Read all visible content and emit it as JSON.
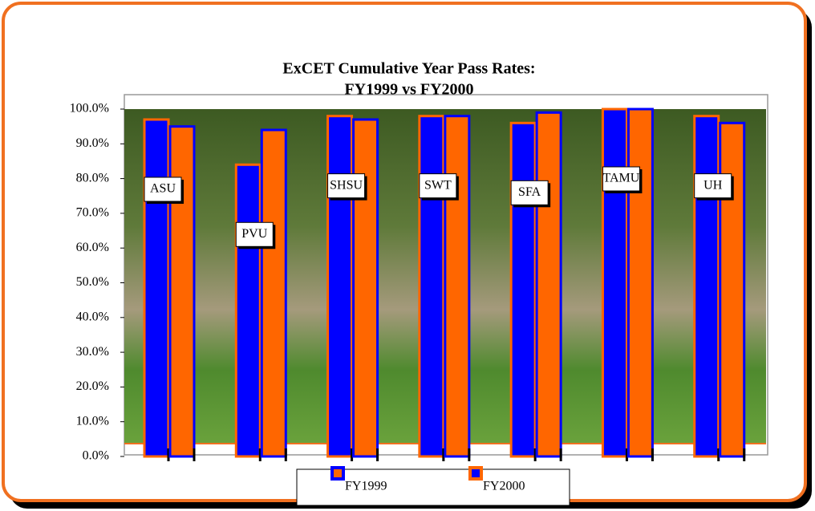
{
  "chart_data": {
    "type": "bar",
    "title": "ExCET Cumulative Year Pass Rates:",
    "subtitle": "FY1999 vs FY2000",
    "categories": [
      "ASU",
      "PVU",
      "SHSU",
      "SWT",
      "SFA",
      "TAMU",
      "UH"
    ],
    "series": [
      {
        "name": "FY1999",
        "color": "#0000ff",
        "values": [
          97,
          84,
          98,
          98,
          96,
          100,
          98
        ]
      },
      {
        "name": "FY2000",
        "color": "#ff6600",
        "values": [
          95,
          94,
          97,
          98,
          99,
          100,
          96
        ]
      }
    ],
    "ylim": [
      0,
      100
    ],
    "yticks": [
      {
        "value": 0,
        "label": "0.0%"
      },
      {
        "value": 10,
        "label": "10.0%"
      },
      {
        "value": 20,
        "label": "20.0%"
      },
      {
        "value": 30,
        "label": "30.0%"
      },
      {
        "value": 40,
        "label": "40.0%"
      },
      {
        "value": 50,
        "label": "50.0%"
      },
      {
        "value": 60,
        "label": "60.0%"
      },
      {
        "value": 70,
        "label": "70.0%"
      },
      {
        "value": 80,
        "label": "80.0%"
      },
      {
        "value": 90,
        "label": "90.0%"
      },
      {
        "value": 100,
        "label": "100.0%"
      }
    ]
  }
}
